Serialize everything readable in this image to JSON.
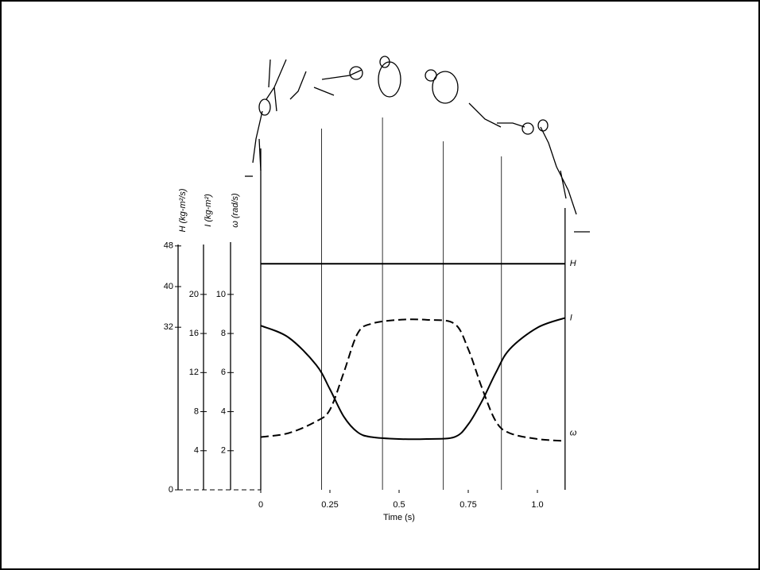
{
  "chart_data": {
    "type": "line",
    "x_label": "Time (s)",
    "xlim": [
      0,
      1.1
    ],
    "xticks": [
      0,
      0.25,
      0.5,
      0.75,
      {
        "value": 1.0,
        "label": "1.0"
      }
    ],
    "x": [
      0,
      0.1,
      0.2,
      0.25,
      0.3,
      0.35,
      0.4,
      0.5,
      0.6,
      0.7,
      0.75,
      0.8,
      0.85,
      0.9,
      1.0,
      1.1
    ],
    "frame_times": [
      0,
      0.22,
      0.44,
      0.66,
      0.87,
      1.1
    ],
    "axes": [
      {
        "label": "H (kg-m²/s)",
        "ylim": [
          0,
          50
        ],
        "yticks": [
          0,
          32,
          40,
          48
        ]
      },
      {
        "label": "I (kg-m²)",
        "ylim": [
          0,
          26
        ],
        "yticks": [
          4,
          8,
          12,
          16,
          20
        ]
      },
      {
        "label": "ω (rad/s)",
        "ylim": [
          0,
          13
        ],
        "yticks": [
          2,
          4,
          6,
          8,
          10
        ]
      }
    ],
    "series": [
      {
        "name": "H",
        "axis": 0,
        "dash": false,
        "color": "#000000",
        "values": [
          44.5,
          44.5,
          44.5,
          44.5,
          44.5,
          44.5,
          44.5,
          44.5,
          44.5,
          44.5,
          44.5,
          44.5,
          44.5,
          44.5,
          44.5,
          44.5
        ]
      },
      {
        "name": "I",
        "axis": 1,
        "dash": false,
        "color": "#000000",
        "values": [
          16.8,
          15.6,
          12.8,
          10.3,
          7.5,
          5.9,
          5.4,
          5.2,
          5.2,
          5.4,
          6.7,
          9.1,
          12.0,
          14.4,
          16.6,
          17.6
        ]
      },
      {
        "name": "ω",
        "axis": 2,
        "dash": true,
        "color": "#000000",
        "values": [
          2.7,
          2.9,
          3.5,
          4.1,
          6.0,
          8.0,
          8.5,
          8.7,
          8.7,
          8.5,
          7.2,
          5.2,
          3.5,
          2.9,
          2.6,
          2.5
        ]
      }
    ]
  }
}
